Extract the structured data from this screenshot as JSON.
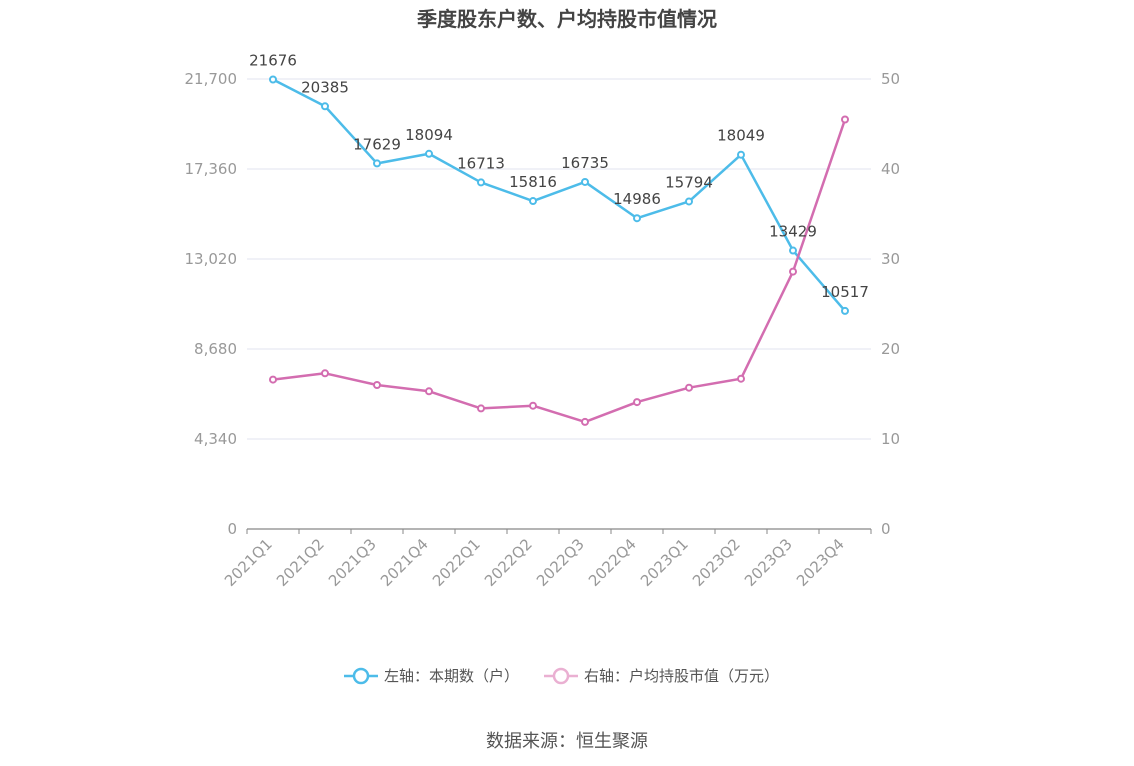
{
  "chart_data": {
    "type": "line",
    "title": "季度股东户数、户均持股市值情况",
    "categories": [
      "2021Q1",
      "2021Q2",
      "2021Q3",
      "2021Q4",
      "2022Q1",
      "2022Q2",
      "2022Q3",
      "2022Q4",
      "2023Q1",
      "2023Q2",
      "2023Q3",
      "2023Q4"
    ],
    "left_axis": {
      "ticks": [
        "0",
        "4,340",
        "8,680",
        "13,020",
        "17,360",
        "21,700"
      ],
      "min": 0,
      "max": 21700
    },
    "right_axis": {
      "ticks": [
        "0",
        "10",
        "20",
        "30",
        "40",
        "50"
      ],
      "min": 0,
      "max": 50
    },
    "series": [
      {
        "name": "左轴：本期数（户）",
        "axis": "left",
        "color": "#4dbce9",
        "values": [
          21676,
          20385,
          17629,
          18094,
          16713,
          15816,
          16735,
          14986,
          15794,
          18049,
          13429,
          10517
        ],
        "labels": [
          "21676",
          "20385",
          "17629",
          "18094",
          "16713",
          "15816",
          "16735",
          "14986",
          "15794",
          "18049",
          "13429",
          "10517"
        ]
      },
      {
        "name": "右轴：户均持股市值（万元）",
        "axis": "right",
        "color": "#d36db0",
        "values": [
          16.6,
          17.3,
          16.0,
          15.3,
          13.4,
          13.7,
          11.9,
          14.1,
          15.7,
          16.7,
          28.6,
          45.5
        ]
      }
    ],
    "legend_position": "bottom",
    "grid": true
  },
  "source": "数据来源：恒生聚源"
}
